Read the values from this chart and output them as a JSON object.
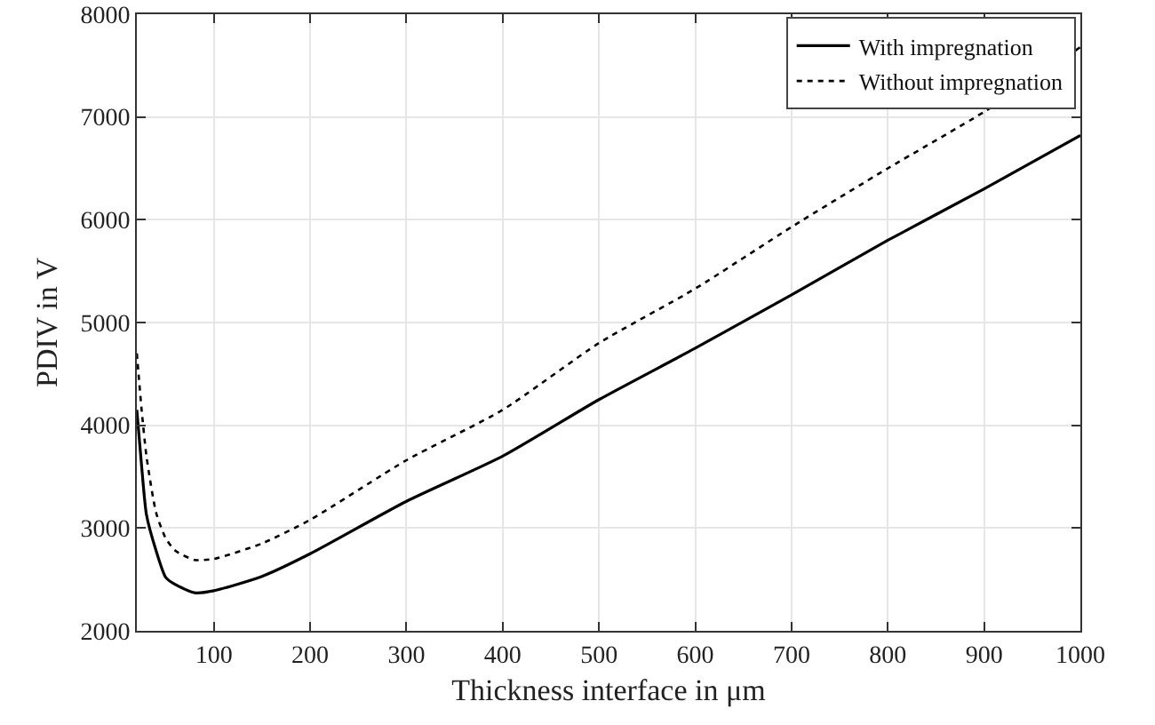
{
  "chart_data": {
    "type": "line",
    "xlabel": "Thickness interface in μm",
    "ylabel": "PDIV in V",
    "xlim": [
      20,
      1000
    ],
    "ylim": [
      2000,
      8000
    ],
    "xticks": [
      100,
      200,
      300,
      400,
      500,
      600,
      700,
      800,
      900,
      1000
    ],
    "yticks": [
      2000,
      3000,
      4000,
      5000,
      6000,
      7000,
      8000
    ],
    "grid": true,
    "legend": "top right",
    "marker": "none",
    "series": [
      {
        "name": "With impregnation",
        "color": "#000000",
        "line_style": "solid",
        "x": [
          20,
          25,
          30,
          40,
          50,
          60,
          80,
          100,
          150,
          200,
          300,
          400,
          500,
          600,
          700,
          800,
          900,
          1000
        ],
        "values": [
          4150,
          3600,
          3130,
          2780,
          2520,
          2450,
          2370,
          2390,
          2530,
          2750,
          3260,
          3700,
          4250,
          4750,
          5270,
          5800,
          6300,
          6820
        ]
      },
      {
        "name": "Without impregnation",
        "color": "#000000",
        "line_style": "dotted",
        "x": [
          20,
          25,
          30,
          40,
          50,
          60,
          80,
          100,
          150,
          200,
          300,
          400,
          500,
          600,
          700,
          800,
          900,
          1000
        ],
        "values": [
          4700,
          4150,
          3700,
          3150,
          2900,
          2780,
          2690,
          2700,
          2850,
          3080,
          3660,
          4150,
          4800,
          5330,
          5930,
          6500,
          7050,
          7680
        ]
      }
    ]
  }
}
